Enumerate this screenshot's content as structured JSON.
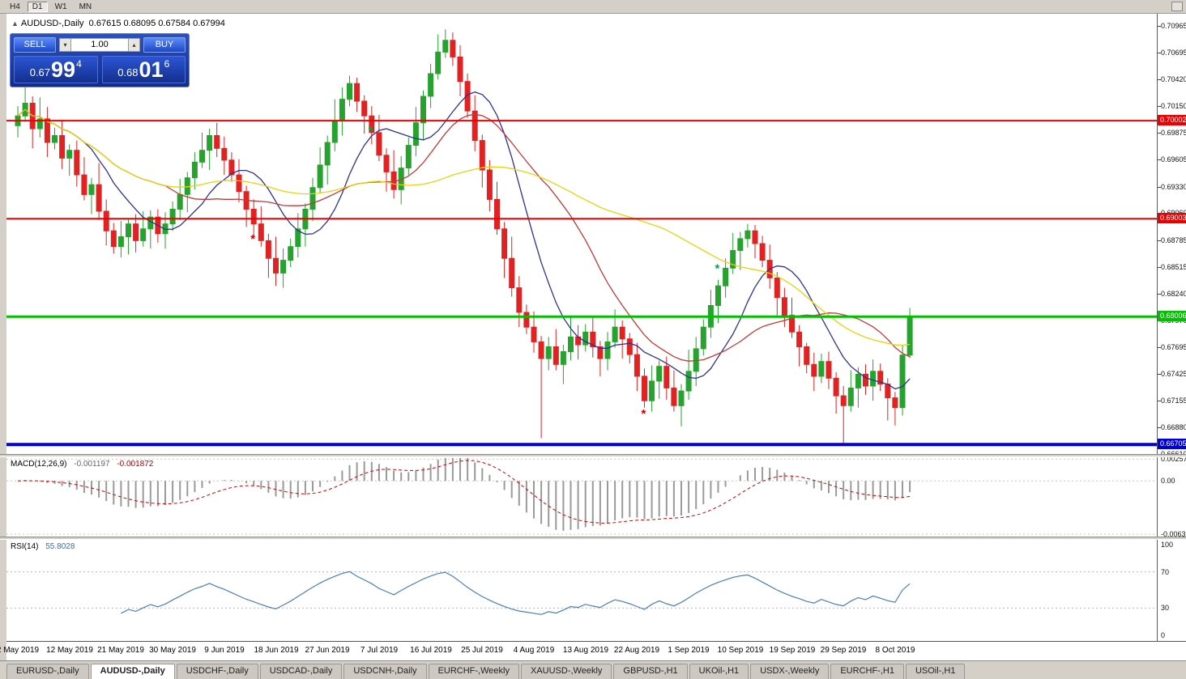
{
  "toolbar": {
    "timeframes": [
      {
        "label": "H4",
        "active": false
      },
      {
        "label": "D1",
        "active": true
      },
      {
        "label": "W1",
        "active": false
      },
      {
        "label": "MN",
        "active": false
      }
    ]
  },
  "chart": {
    "title": "AUDUSD-,Daily",
    "ohlc": "0.67615 0.68095 0.67584 0.67994"
  },
  "trade_panel": {
    "sell_label": "SELL",
    "buy_label": "BUY",
    "volume": "1.00",
    "bid_prefix": "0.67",
    "bid_big": "99",
    "bid_pip": "4",
    "ask_prefix": "0.68",
    "ask_big": "01",
    "ask_pip": "6"
  },
  "chart_data": {
    "type": "candlestick",
    "symbol": "AUDUSD-",
    "timeframe": "Daily",
    "bull_color": "#27a22e",
    "bear_color": "#e02222",
    "price_domain": [
      0.66608,
      0.7109
    ],
    "price_ticks": [
      "0.70965",
      "0.70695",
      "0.70420",
      "0.70150",
      "0.69875",
      "0.69605",
      "0.69330",
      "0.69060",
      "0.68785",
      "0.68515",
      "0.68240",
      "0.67970",
      "0.67695",
      "0.67425",
      "0.67155",
      "0.66880",
      "0.66610"
    ],
    "x_labels": [
      "2 May 2019",
      "12 May 2019",
      "21 May 2019",
      "30 May 2019",
      "9 Jun 2019",
      "18 Jun 2019",
      "27 Jun 2019",
      "7 Jul 2019",
      "16 Jul 2019",
      "25 Jul 2019",
      "4 Aug 2019",
      "13 Aug 2019",
      "22 Aug 2019",
      "1 Sep 2019",
      "10 Sep 2019",
      "19 Sep 2019",
      "29 Sep 2019",
      "8 Oct 2019"
    ],
    "x_label_step": 7,
    "hlines": [
      {
        "price": 0.70002,
        "color": "#ee0000",
        "width": 2,
        "label": "0.70002"
      },
      {
        "price": 0.69003,
        "color": "#ee0000",
        "width": 2,
        "label": "0.69003"
      },
      {
        "price": 0.68006,
        "color": "#00c000",
        "width": 3,
        "label": "0.68006"
      },
      {
        "price": 0.66705,
        "color": "#0000dd",
        "width": 4,
        "label": "0.66705"
      }
    ],
    "ma": [
      {
        "period": 10,
        "color": "#2e3192"
      },
      {
        "period": 21,
        "color": "#c03a3a"
      },
      {
        "period": 50,
        "color": "#e8d30a"
      }
    ],
    "markers": [
      {
        "index": 32,
        "price": 0.688,
        "color": "#cc0000"
      },
      {
        "index": 48,
        "price": 0.699,
        "color": "#00a050"
      },
      {
        "index": 85,
        "price": 0.6702,
        "color": "#cc0000"
      },
      {
        "index": 95,
        "price": 0.685,
        "color": "#00a050"
      }
    ],
    "macd": {
      "label": "MACD(12,26,9)",
      "value_main": "-0.001197",
      "value_signal": "-0.001872",
      "fast": 12,
      "slow": 26,
      "signal": 9,
      "ticks": [
        "0.002574",
        "0.00",
        "-0.006326"
      ],
      "domain": [
        -0.0066,
        0.0028
      ]
    },
    "rsi": {
      "label": "RSI(14)",
      "value": "55.8028",
      "period": 14,
      "levels": [
        100,
        70,
        30,
        0
      ]
    },
    "candles": [
      [
        0.6995,
        0.7015,
        0.6983,
        0.7005
      ],
      [
        0.7005,
        0.7036,
        0.6999,
        0.7018
      ],
      [
        0.7018,
        0.7025,
        0.6972,
        0.6992
      ],
      [
        0.6992,
        0.7024,
        0.6983,
        0.7002
      ],
      [
        0.7002,
        0.7014,
        0.6963,
        0.6978
      ],
      [
        0.6978,
        0.6993,
        0.6971,
        0.6985
      ],
      [
        0.6985,
        0.7001,
        0.6951,
        0.6962
      ],
      [
        0.6962,
        0.6976,
        0.6944,
        0.697
      ],
      [
        0.697,
        0.698,
        0.6933,
        0.6945
      ],
      [
        0.6945,
        0.6963,
        0.6919,
        0.6925
      ],
      [
        0.6925,
        0.6942,
        0.6905,
        0.6935
      ],
      [
        0.6935,
        0.6957,
        0.6899,
        0.6908
      ],
      [
        0.6908,
        0.692,
        0.6873,
        0.6888
      ],
      [
        0.6888,
        0.6896,
        0.6865,
        0.6872
      ],
      [
        0.6872,
        0.6898,
        0.6861,
        0.6882
      ],
      [
        0.6882,
        0.6901,
        0.6864,
        0.6895
      ],
      [
        0.6895,
        0.6905,
        0.6866,
        0.6878
      ],
      [
        0.6878,
        0.6908,
        0.6872,
        0.689
      ],
      [
        0.689,
        0.6909,
        0.687,
        0.6902
      ],
      [
        0.6902,
        0.691,
        0.6876,
        0.6885
      ],
      [
        0.6885,
        0.6907,
        0.687,
        0.6895
      ],
      [
        0.6895,
        0.6918,
        0.6888,
        0.691
      ],
      [
        0.691,
        0.6941,
        0.6899,
        0.6925
      ],
      [
        0.6925,
        0.6948,
        0.6907,
        0.6942
      ],
      [
        0.6942,
        0.6968,
        0.693,
        0.6958
      ],
      [
        0.6958,
        0.6988,
        0.6952,
        0.697
      ],
      [
        0.697,
        0.6992,
        0.695,
        0.6985
      ],
      [
        0.6985,
        0.6998,
        0.6963,
        0.6972
      ],
      [
        0.6972,
        0.6984,
        0.6945,
        0.696
      ],
      [
        0.696,
        0.6968,
        0.6938,
        0.6945
      ],
      [
        0.6945,
        0.6961,
        0.6917,
        0.6928
      ],
      [
        0.6928,
        0.6934,
        0.6892,
        0.691
      ],
      [
        0.691,
        0.692,
        0.6883,
        0.6895
      ],
      [
        0.6895,
        0.6913,
        0.6872,
        0.6878
      ],
      [
        0.6878,
        0.6885,
        0.684,
        0.686
      ],
      [
        0.686,
        0.6882,
        0.6832,
        0.6845
      ],
      [
        0.6845,
        0.687,
        0.683,
        0.6858
      ],
      [
        0.6858,
        0.688,
        0.6851,
        0.6872
      ],
      [
        0.6872,
        0.6906,
        0.6861,
        0.689
      ],
      [
        0.689,
        0.6916,
        0.6872,
        0.691
      ],
      [
        0.691,
        0.6942,
        0.6898,
        0.6932
      ],
      [
        0.6932,
        0.6973,
        0.6926,
        0.6955
      ],
      [
        0.6955,
        0.6985,
        0.6935,
        0.6978
      ],
      [
        0.6978,
        0.7022,
        0.6969,
        0.7
      ],
      [
        0.7,
        0.7034,
        0.6985,
        0.7022
      ],
      [
        0.7022,
        0.7046,
        0.7015,
        0.7038
      ],
      [
        0.7038,
        0.7044,
        0.7009,
        0.702
      ],
      [
        0.702,
        0.7026,
        0.6987,
        0.7005
      ],
      [
        0.7005,
        0.7015,
        0.6976,
        0.6988
      ],
      [
        0.6988,
        0.7006,
        0.6959,
        0.6965
      ],
      [
        0.6965,
        0.6972,
        0.6928,
        0.6948
      ],
      [
        0.6948,
        0.697,
        0.6921,
        0.693
      ],
      [
        0.693,
        0.6964,
        0.6915,
        0.6952
      ],
      [
        0.6952,
        0.6983,
        0.6945,
        0.6975
      ],
      [
        0.6975,
        0.7014,
        0.6964,
        0.6998
      ],
      [
        0.6998,
        0.7031,
        0.698,
        0.7025
      ],
      [
        0.7025,
        0.7058,
        0.7013,
        0.7048
      ],
      [
        0.7048,
        0.7088,
        0.7042,
        0.707
      ],
      [
        0.707,
        0.7093,
        0.7064,
        0.7082
      ],
      [
        0.7082,
        0.709,
        0.7056,
        0.7065
      ],
      [
        0.7065,
        0.7077,
        0.7025,
        0.704
      ],
      [
        0.704,
        0.7048,
        0.7003,
        0.701
      ],
      [
        0.701,
        0.7026,
        0.6969,
        0.698
      ],
      [
        0.698,
        0.6986,
        0.6932,
        0.695
      ],
      [
        0.695,
        0.696,
        0.6908,
        0.692
      ],
      [
        0.692,
        0.6938,
        0.6884,
        0.689
      ],
      [
        0.689,
        0.6897,
        0.684,
        0.686
      ],
      [
        0.686,
        0.6882,
        0.6821,
        0.683
      ],
      [
        0.683,
        0.6842,
        0.679,
        0.6805
      ],
      [
        0.6805,
        0.6813,
        0.6783,
        0.679
      ],
      [
        0.679,
        0.6806,
        0.6764,
        0.6775
      ],
      [
        0.6775,
        0.6781,
        0.6677,
        0.6758
      ],
      [
        0.6758,
        0.678,
        0.6746,
        0.677
      ],
      [
        0.677,
        0.6788,
        0.6746,
        0.6752
      ],
      [
        0.6752,
        0.6772,
        0.6732,
        0.6765
      ],
      [
        0.6765,
        0.6802,
        0.6756,
        0.678
      ],
      [
        0.678,
        0.6792,
        0.6757,
        0.6772
      ],
      [
        0.6772,
        0.6793,
        0.6765,
        0.6785
      ],
      [
        0.6785,
        0.6801,
        0.6759,
        0.677
      ],
      [
        0.677,
        0.6776,
        0.674,
        0.6758
      ],
      [
        0.6758,
        0.6785,
        0.6746,
        0.6775
      ],
      [
        0.6775,
        0.6808,
        0.6769,
        0.679
      ],
      [
        0.679,
        0.6797,
        0.6758,
        0.6778
      ],
      [
        0.6778,
        0.6784,
        0.6753,
        0.6762
      ],
      [
        0.6762,
        0.6774,
        0.6725,
        0.674
      ],
      [
        0.674,
        0.6748,
        0.6708,
        0.6715
      ],
      [
        0.6715,
        0.6751,
        0.6704,
        0.6735
      ],
      [
        0.6735,
        0.6756,
        0.6717,
        0.675
      ],
      [
        0.675,
        0.676,
        0.6716,
        0.6728
      ],
      [
        0.6728,
        0.6746,
        0.6704,
        0.671
      ],
      [
        0.671,
        0.6732,
        0.6689,
        0.6725
      ],
      [
        0.6725,
        0.6767,
        0.6716,
        0.6745
      ],
      [
        0.6745,
        0.678,
        0.673,
        0.6768
      ],
      [
        0.6768,
        0.6798,
        0.6761,
        0.679
      ],
      [
        0.679,
        0.6828,
        0.6779,
        0.6812
      ],
      [
        0.6812,
        0.6838,
        0.6794,
        0.6832
      ],
      [
        0.6832,
        0.686,
        0.682,
        0.685
      ],
      [
        0.685,
        0.6886,
        0.6844,
        0.6868
      ],
      [
        0.6868,
        0.6887,
        0.6848,
        0.688
      ],
      [
        0.688,
        0.6895,
        0.6871,
        0.6888
      ],
      [
        0.6888,
        0.6894,
        0.686,
        0.6875
      ],
      [
        0.6875,
        0.6883,
        0.6851,
        0.6858
      ],
      [
        0.6858,
        0.6874,
        0.6829,
        0.684
      ],
      [
        0.684,
        0.6846,
        0.6802,
        0.682
      ],
      [
        0.682,
        0.683,
        0.679,
        0.6802
      ],
      [
        0.6802,
        0.682,
        0.6779,
        0.6785
      ],
      [
        0.6785,
        0.6792,
        0.675,
        0.677
      ],
      [
        0.677,
        0.6774,
        0.6743,
        0.6752
      ],
      [
        0.6752,
        0.6764,
        0.6725,
        0.674
      ],
      [
        0.674,
        0.6763,
        0.6733,
        0.6755
      ],
      [
        0.6755,
        0.6765,
        0.6727,
        0.6738
      ],
      [
        0.6738,
        0.6744,
        0.6702,
        0.672
      ],
      [
        0.672,
        0.673,
        0.6671,
        0.671
      ],
      [
        0.671,
        0.6746,
        0.6704,
        0.6728
      ],
      [
        0.6728,
        0.6749,
        0.6708,
        0.6742
      ],
      [
        0.6742,
        0.6752,
        0.6721,
        0.673
      ],
      [
        0.673,
        0.6757,
        0.6715,
        0.6745
      ],
      [
        0.6745,
        0.6753,
        0.6725,
        0.6732
      ],
      [
        0.6732,
        0.6738,
        0.6695,
        0.6718
      ],
      [
        0.6718,
        0.6724,
        0.669,
        0.6708
      ],
      [
        0.6708,
        0.67715,
        0.67,
        0.67615
      ],
      [
        0.67615,
        0.68095,
        0.67584,
        0.67994
      ]
    ]
  },
  "tabs": [
    {
      "label": "EURUSD-,Daily",
      "active": false
    },
    {
      "label": "AUDUSD-,Daily",
      "active": true
    },
    {
      "label": "USDCHF-,Daily",
      "active": false
    },
    {
      "label": "USDCAD-,Daily",
      "active": false
    },
    {
      "label": "USDCNH-,Daily",
      "active": false
    },
    {
      "label": "EURCHF-,Weekly",
      "active": false
    },
    {
      "label": "XAUUSD-,Weekly",
      "active": false
    },
    {
      "label": "GBPUSD-,H1",
      "active": false
    },
    {
      "label": "UKOil-,H1",
      "active": false
    },
    {
      "label": "USDX-,Weekly",
      "active": false
    },
    {
      "label": "EURCHF-,H1",
      "active": false
    },
    {
      "label": "USOil-,H1",
      "active": false
    }
  ]
}
